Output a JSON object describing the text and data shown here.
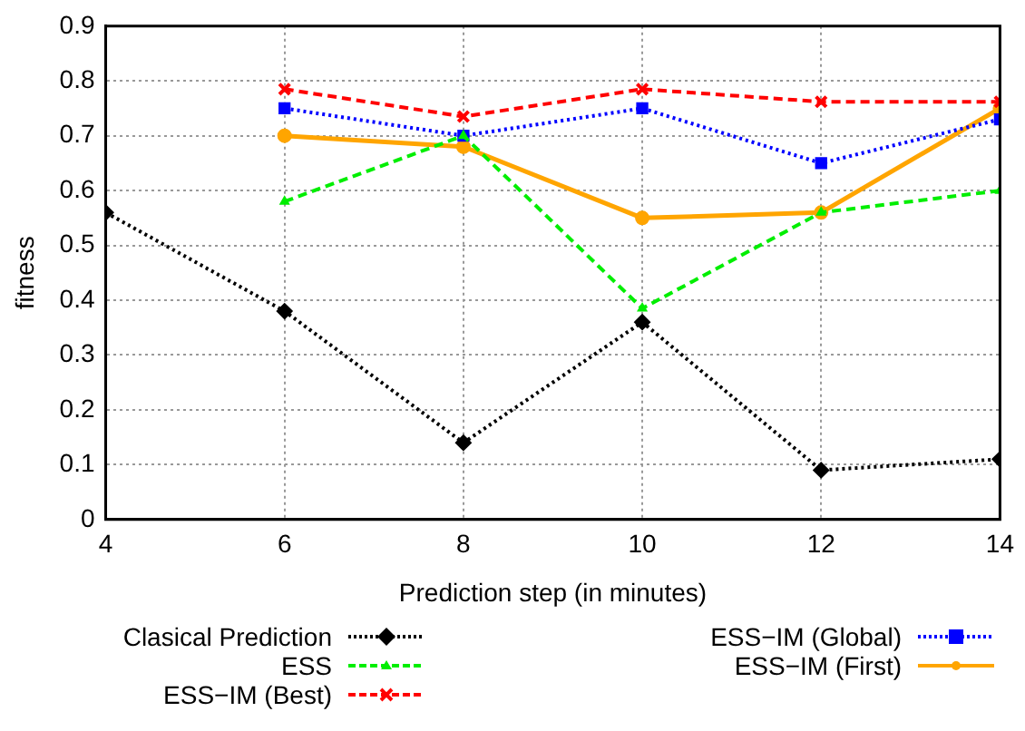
{
  "chart_data": {
    "type": "line",
    "xlabel": "Prediction step (in minutes)",
    "ylabel": "fitness",
    "x": [
      4,
      6,
      8,
      10,
      12,
      14
    ],
    "xlim": [
      4,
      14
    ],
    "xticks": [
      4,
      6,
      8,
      10,
      12,
      14
    ],
    "ylim": [
      0,
      0.9
    ],
    "yticks": [
      0,
      0.1,
      0.2,
      0.3,
      0.4,
      0.5,
      0.6,
      0.7,
      0.8,
      0.9
    ],
    "grid": true,
    "legend": "bottom",
    "series": [
      {
        "name": "Clasical Prediction",
        "color": "#000000",
        "marker": "diamond",
        "line_style": "dotted",
        "values": [
          0.56,
          0.38,
          0.14,
          0.36,
          0.09,
          0.11
        ]
      },
      {
        "name": "ESS",
        "color": "#00ee00",
        "marker": "triangle",
        "line_style": "dashed",
        "values": [
          null,
          0.58,
          0.7,
          0.385,
          0.56,
          0.6
        ]
      },
      {
        "name": "ESS−IM (Best)",
        "color": "#ff0000",
        "marker": "cross",
        "line_style": "dashed",
        "values": [
          null,
          0.785,
          0.735,
          0.785,
          0.762,
          0.762
        ]
      },
      {
        "name": "ESS−IM (Global)",
        "color": "#0000ff",
        "marker": "square",
        "line_style": "dotted",
        "values": [
          null,
          0.75,
          0.7,
          0.75,
          0.65,
          0.73
        ]
      },
      {
        "name": "ESS−IM (First)",
        "color": "#ffa500",
        "marker": "circle",
        "line_style": "solid",
        "values": [
          null,
          0.7,
          0.68,
          0.55,
          0.56,
          0.75
        ]
      }
    ]
  }
}
